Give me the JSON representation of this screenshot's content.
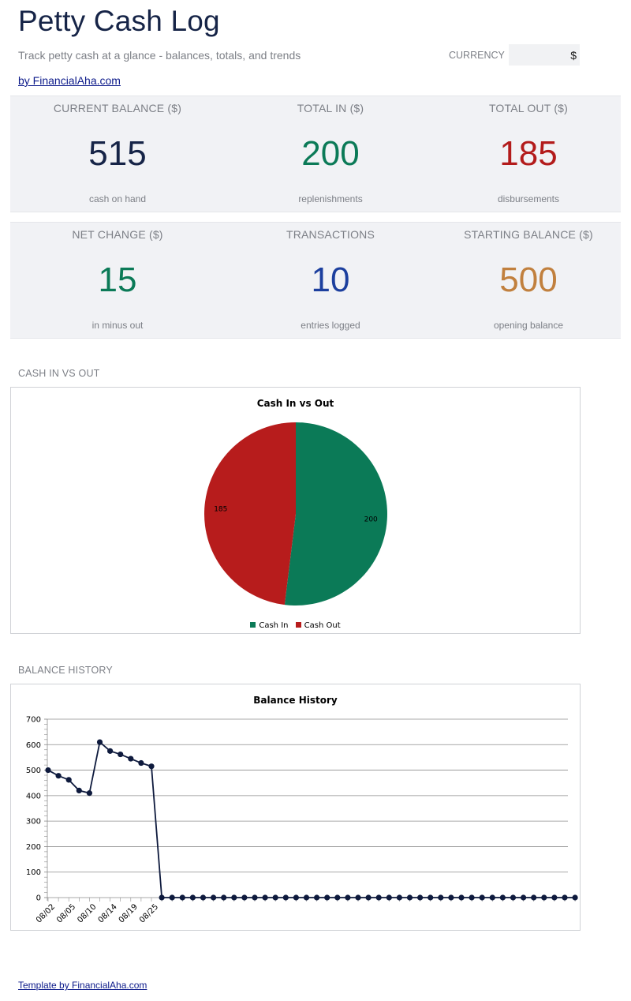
{
  "header": {
    "title": "Petty Cash Log",
    "subtitle": "Track petty cash at a glance - balances, totals, and trends",
    "currency_label": "CURRENCY",
    "currency_value": "$",
    "by_link": "by FinancialAha.com"
  },
  "kpis_row1": [
    {
      "label": "CURRENT BALANCE ($)",
      "value": "515",
      "sub": "cash on hand",
      "color": "#162447"
    },
    {
      "label": "TOTAL IN ($)",
      "value": "200",
      "sub": "replenishments",
      "color": "#0b7a57"
    },
    {
      "label": "TOTAL OUT ($)",
      "value": "185",
      "sub": "disbursements",
      "color": "#b31b1b"
    }
  ],
  "kpis_row2": [
    {
      "label": "NET CHANGE ($)",
      "value": "15",
      "sub": "in minus out",
      "color": "#0b7a57"
    },
    {
      "label": "TRANSACTIONS",
      "value": "10",
      "sub": "entries logged",
      "color": "#1c3f9e"
    },
    {
      "label": "STARTING BALANCE ($)",
      "value": "500",
      "sub": "opening balance",
      "color": "#c1803e"
    }
  ],
  "sections": {
    "pie_label": "CASH IN VS OUT",
    "line_label": "BALANCE HISTORY"
  },
  "chart_data": [
    {
      "type": "pie",
      "title": "Cash In vs Out",
      "categories": [
        "Cash In",
        "Cash Out"
      ],
      "values": [
        200,
        185
      ],
      "colors": [
        "#0b7a57",
        "#b71c1c"
      ],
      "legend": "bottom"
    },
    {
      "type": "line",
      "title": "Balance History",
      "y_values": [
        500,
        478,
        462,
        420,
        410,
        610,
        575,
        562,
        545,
        528,
        515,
        0,
        0,
        0,
        0,
        0,
        0,
        0,
        0,
        0,
        0,
        0,
        0,
        0,
        0,
        0,
        0,
        0,
        0,
        0,
        0,
        0,
        0,
        0,
        0,
        0,
        0,
        0,
        0,
        0,
        0,
        0,
        0,
        0,
        0,
        0,
        0,
        0,
        0,
        0,
        0,
        0
      ],
      "x_tick_labels": [
        "08/02",
        "08/05",
        "08/10",
        "08/14",
        "08/19",
        "08/25"
      ],
      "ylim": [
        0,
        700
      ],
      "y_ticks": [
        0,
        100,
        200,
        300,
        400,
        500,
        600,
        700
      ],
      "grid": true,
      "color": "#0e1a3d"
    }
  ],
  "footer": {
    "link": "Template by FinancialAha.com"
  }
}
